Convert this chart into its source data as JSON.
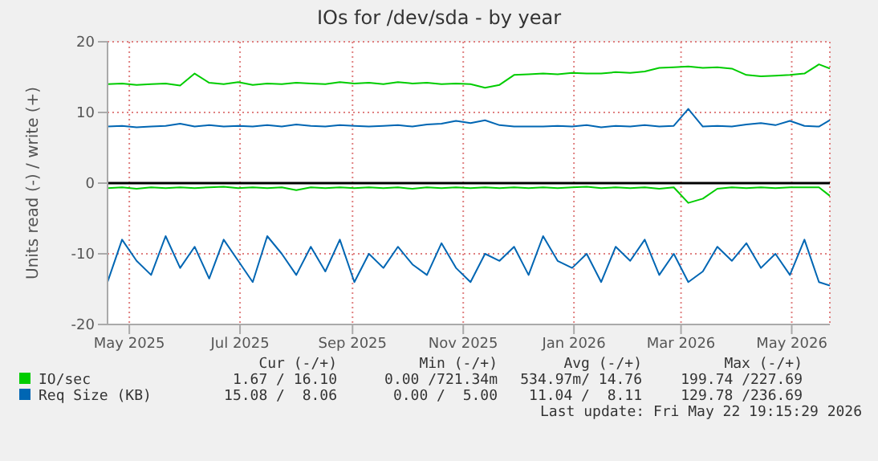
{
  "chart_data": {
    "type": "line",
    "title": "IOs for /dev/sda - by year",
    "ylabel": "Units read (-) / write (+)",
    "x": [
      "2025-04-19",
      "2025-04-27",
      "2025-05-05",
      "2025-05-13",
      "2025-05-21",
      "2025-05-29",
      "2025-06-06",
      "2025-06-14",
      "2025-06-22",
      "2025-06-30",
      "2025-07-08",
      "2025-07-16",
      "2025-07-24",
      "2025-08-01",
      "2025-08-09",
      "2025-08-17",
      "2025-08-25",
      "2025-09-02",
      "2025-09-10",
      "2025-09-18",
      "2025-09-26",
      "2025-10-04",
      "2025-10-12",
      "2025-10-20",
      "2025-10-28",
      "2025-11-05",
      "2025-11-13",
      "2025-11-21",
      "2025-11-29",
      "2025-12-07",
      "2025-12-15",
      "2025-12-23",
      "2025-12-31",
      "2026-01-08",
      "2026-01-16",
      "2026-01-24",
      "2026-02-01",
      "2026-02-09",
      "2026-02-17",
      "2026-02-25",
      "2026-03-05",
      "2026-03-13",
      "2026-03-21",
      "2026-03-29",
      "2026-04-06",
      "2026-04-14",
      "2026-04-22",
      "2026-04-30",
      "2026-05-08",
      "2026-05-16",
      "2026-05-22"
    ],
    "series": [
      {
        "name": "IO/sec",
        "color": "#00cc00",
        "values": [
          14.0,
          14.1,
          13.9,
          14.0,
          14.1,
          13.8,
          15.5,
          14.2,
          14.0,
          14.3,
          13.9,
          14.1,
          14.0,
          14.2,
          14.1,
          14.0,
          14.3,
          14.1,
          14.2,
          14.0,
          14.3,
          14.1,
          14.2,
          14.0,
          14.1,
          14.0,
          13.5,
          13.9,
          15.3,
          15.4,
          15.5,
          15.4,
          15.6,
          15.5,
          15.5,
          15.7,
          15.6,
          15.8,
          16.3,
          16.4,
          16.5,
          16.3,
          16.4,
          16.2,
          15.3,
          15.1,
          15.2,
          15.3,
          15.5,
          16.8,
          16.2
        ]
      },
      {
        "name": "Req Size (KB)",
        "color": "#0066b3",
        "values": [
          8.0,
          8.1,
          7.9,
          8.0,
          8.1,
          8.4,
          8.0,
          8.2,
          8.0,
          8.1,
          8.0,
          8.2,
          8.0,
          8.3,
          8.1,
          8.0,
          8.2,
          8.1,
          8.0,
          8.1,
          8.2,
          8.0,
          8.3,
          8.4,
          8.8,
          8.5,
          8.9,
          8.2,
          8.0,
          8.0,
          8.0,
          8.1,
          8.0,
          8.2,
          7.9,
          8.1,
          8.0,
          8.2,
          8.0,
          8.1,
          10.5,
          8.0,
          8.1,
          8.0,
          8.3,
          8.5,
          8.2,
          8.8,
          8.1,
          8.0,
          8.9
        ]
      },
      {
        "color": "#00cc00",
        "values": [
          -0.7,
          -0.6,
          -0.8,
          -0.6,
          -0.7,
          -0.6,
          -0.7,
          -0.6,
          -0.5,
          -0.7,
          -0.6,
          -0.7,
          -0.6,
          -1.0,
          -0.6,
          -0.7,
          -0.6,
          -0.7,
          -0.6,
          -0.7,
          -0.6,
          -0.8,
          -0.6,
          -0.7,
          -0.6,
          -0.7,
          -0.6,
          -0.7,
          -0.6,
          -0.7,
          -0.6,
          -0.7,
          -0.6,
          -0.5,
          -0.7,
          -0.6,
          -0.7,
          -0.6,
          -0.8,
          -0.6,
          -2.8,
          -2.2,
          -0.8,
          -0.6,
          -0.7,
          -0.6,
          -0.7,
          -0.6,
          -0.6,
          -0.6,
          -1.8
        ]
      },
      {
        "color": "#0066b3",
        "values": [
          -14,
          -8,
          -11,
          -13,
          -7.5,
          -12,
          -9,
          -13.5,
          -8,
          -11,
          -14,
          -7.5,
          -10,
          -13,
          -9,
          -12.5,
          -8,
          -14,
          -10,
          -12,
          -9,
          -11.5,
          -13,
          -8.5,
          -12,
          -14,
          -10,
          -11,
          -9,
          -13,
          -7.5,
          -11,
          -12,
          -10,
          -14,
          -9,
          -11,
          -8,
          -13,
          -10,
          -14,
          -12.5,
          -9,
          -11,
          -8.5,
          -12,
          -10,
          -13,
          -8,
          -14,
          -14.5
        ]
      }
    ],
    "xlim": [
      "2025-04-19",
      "2026-05-22"
    ],
    "xticks": [
      {
        "value": "2025-05-01",
        "label": "May 2025"
      },
      {
        "value": "2025-07-01",
        "label": "Jul 2025"
      },
      {
        "value": "2025-09-01",
        "label": "Sep 2025"
      },
      {
        "value": "2025-11-01",
        "label": "Nov 2025"
      },
      {
        "value": "2026-01-01",
        "label": "Jan 2026"
      },
      {
        "value": "2026-03-01",
        "label": "Mar 2026"
      },
      {
        "value": "2026-05-01",
        "label": "May 2026"
      }
    ],
    "ylim": [
      -20,
      20
    ],
    "yticks": [
      -20,
      -10,
      0,
      10,
      20
    ],
    "ref_lines": [
      {
        "axis": "y",
        "value": 0,
        "color": "#000000"
      }
    ],
    "grid": true,
    "legend": "bottom",
    "marker": "none",
    "line_style": "solid",
    "annotations": [
      "Cur (-/+)",
      "Min (-/+)",
      "Avg (-/+)",
      "Max (-/+)",
      "1.67 / 16.10",
      "0.00 /721.34m",
      "534.97m/ 14.76",
      "199.74 /227.69",
      "15.08 /  8.06",
      "0.00 /  5.00",
      "11.04 /  8.11",
      "129.78 /236.69",
      "Last update: Fri May 22 19:15:29 2026"
    ]
  }
}
